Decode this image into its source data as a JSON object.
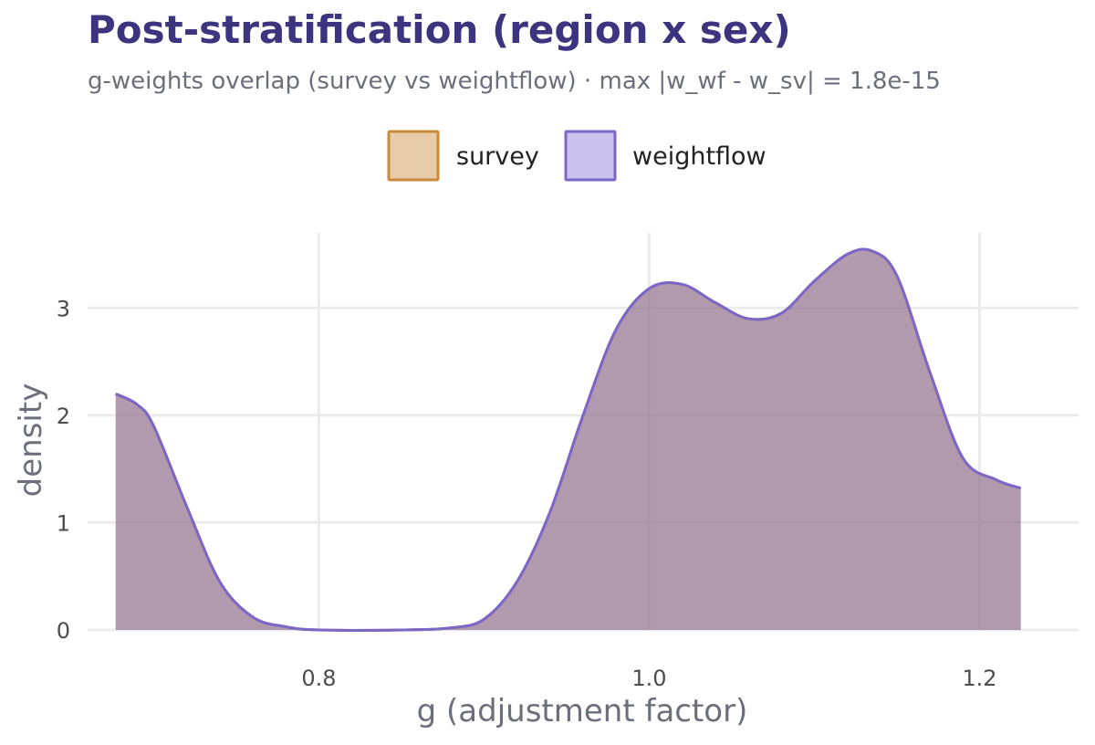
{
  "chart_data": {
    "type": "area",
    "title": "Post-stratification (region x sex)",
    "subtitle": "g-weights overlap (survey vs weightflow) · max |w_wf - w_sv| = 1.8e-15",
    "xlabel": "g (adjustment factor)",
    "ylabel": "density",
    "xlim": [
      0.66,
      1.26
    ],
    "ylim": [
      0,
      3.7
    ],
    "x_ticks": [
      0.8,
      1.0,
      1.2
    ],
    "x_tick_labels": [
      "0.8",
      "1.0",
      "1.2"
    ],
    "y_ticks": [
      0,
      1,
      2,
      3
    ],
    "y_tick_labels": [
      "0",
      "1",
      "2",
      "3"
    ],
    "grid": true,
    "legend_position": "top",
    "series": [
      {
        "name": "survey",
        "fill": "#e8cba8",
        "stroke": "#c98a3a",
        "x": [
          0.677,
          0.69,
          0.7,
          0.72,
          0.74,
          0.76,
          0.78,
          0.8,
          0.85,
          0.88,
          0.9,
          0.92,
          0.94,
          0.96,
          0.98,
          1.0,
          1.02,
          1.04,
          1.06,
          1.08,
          1.1,
          1.12,
          1.135,
          1.15,
          1.17,
          1.19,
          1.21,
          1.225
        ],
        "y": [
          2.2,
          2.1,
          1.9,
          1.15,
          0.45,
          0.12,
          0.03,
          0.0,
          0.0,
          0.02,
          0.1,
          0.45,
          1.1,
          2.0,
          2.8,
          3.18,
          3.22,
          3.05,
          2.9,
          2.95,
          3.25,
          3.5,
          3.53,
          3.3,
          2.4,
          1.6,
          1.4,
          1.32
        ]
      },
      {
        "name": "weightflow",
        "fill": "#cbc3ec",
        "stroke": "#7b66c9",
        "x": [
          0.677,
          0.69,
          0.7,
          0.72,
          0.74,
          0.76,
          0.78,
          0.8,
          0.85,
          0.88,
          0.9,
          0.92,
          0.94,
          0.96,
          0.98,
          1.0,
          1.02,
          1.04,
          1.06,
          1.08,
          1.1,
          1.12,
          1.135,
          1.15,
          1.17,
          1.19,
          1.21,
          1.225
        ],
        "y": [
          2.2,
          2.1,
          1.9,
          1.15,
          0.45,
          0.12,
          0.03,
          0.0,
          0.0,
          0.02,
          0.1,
          0.45,
          1.1,
          2.0,
          2.8,
          3.18,
          3.22,
          3.05,
          2.9,
          2.95,
          3.25,
          3.5,
          3.53,
          3.3,
          2.4,
          1.6,
          1.4,
          1.32
        ]
      }
    ],
    "overlap_fill": "#b9a3b8"
  }
}
